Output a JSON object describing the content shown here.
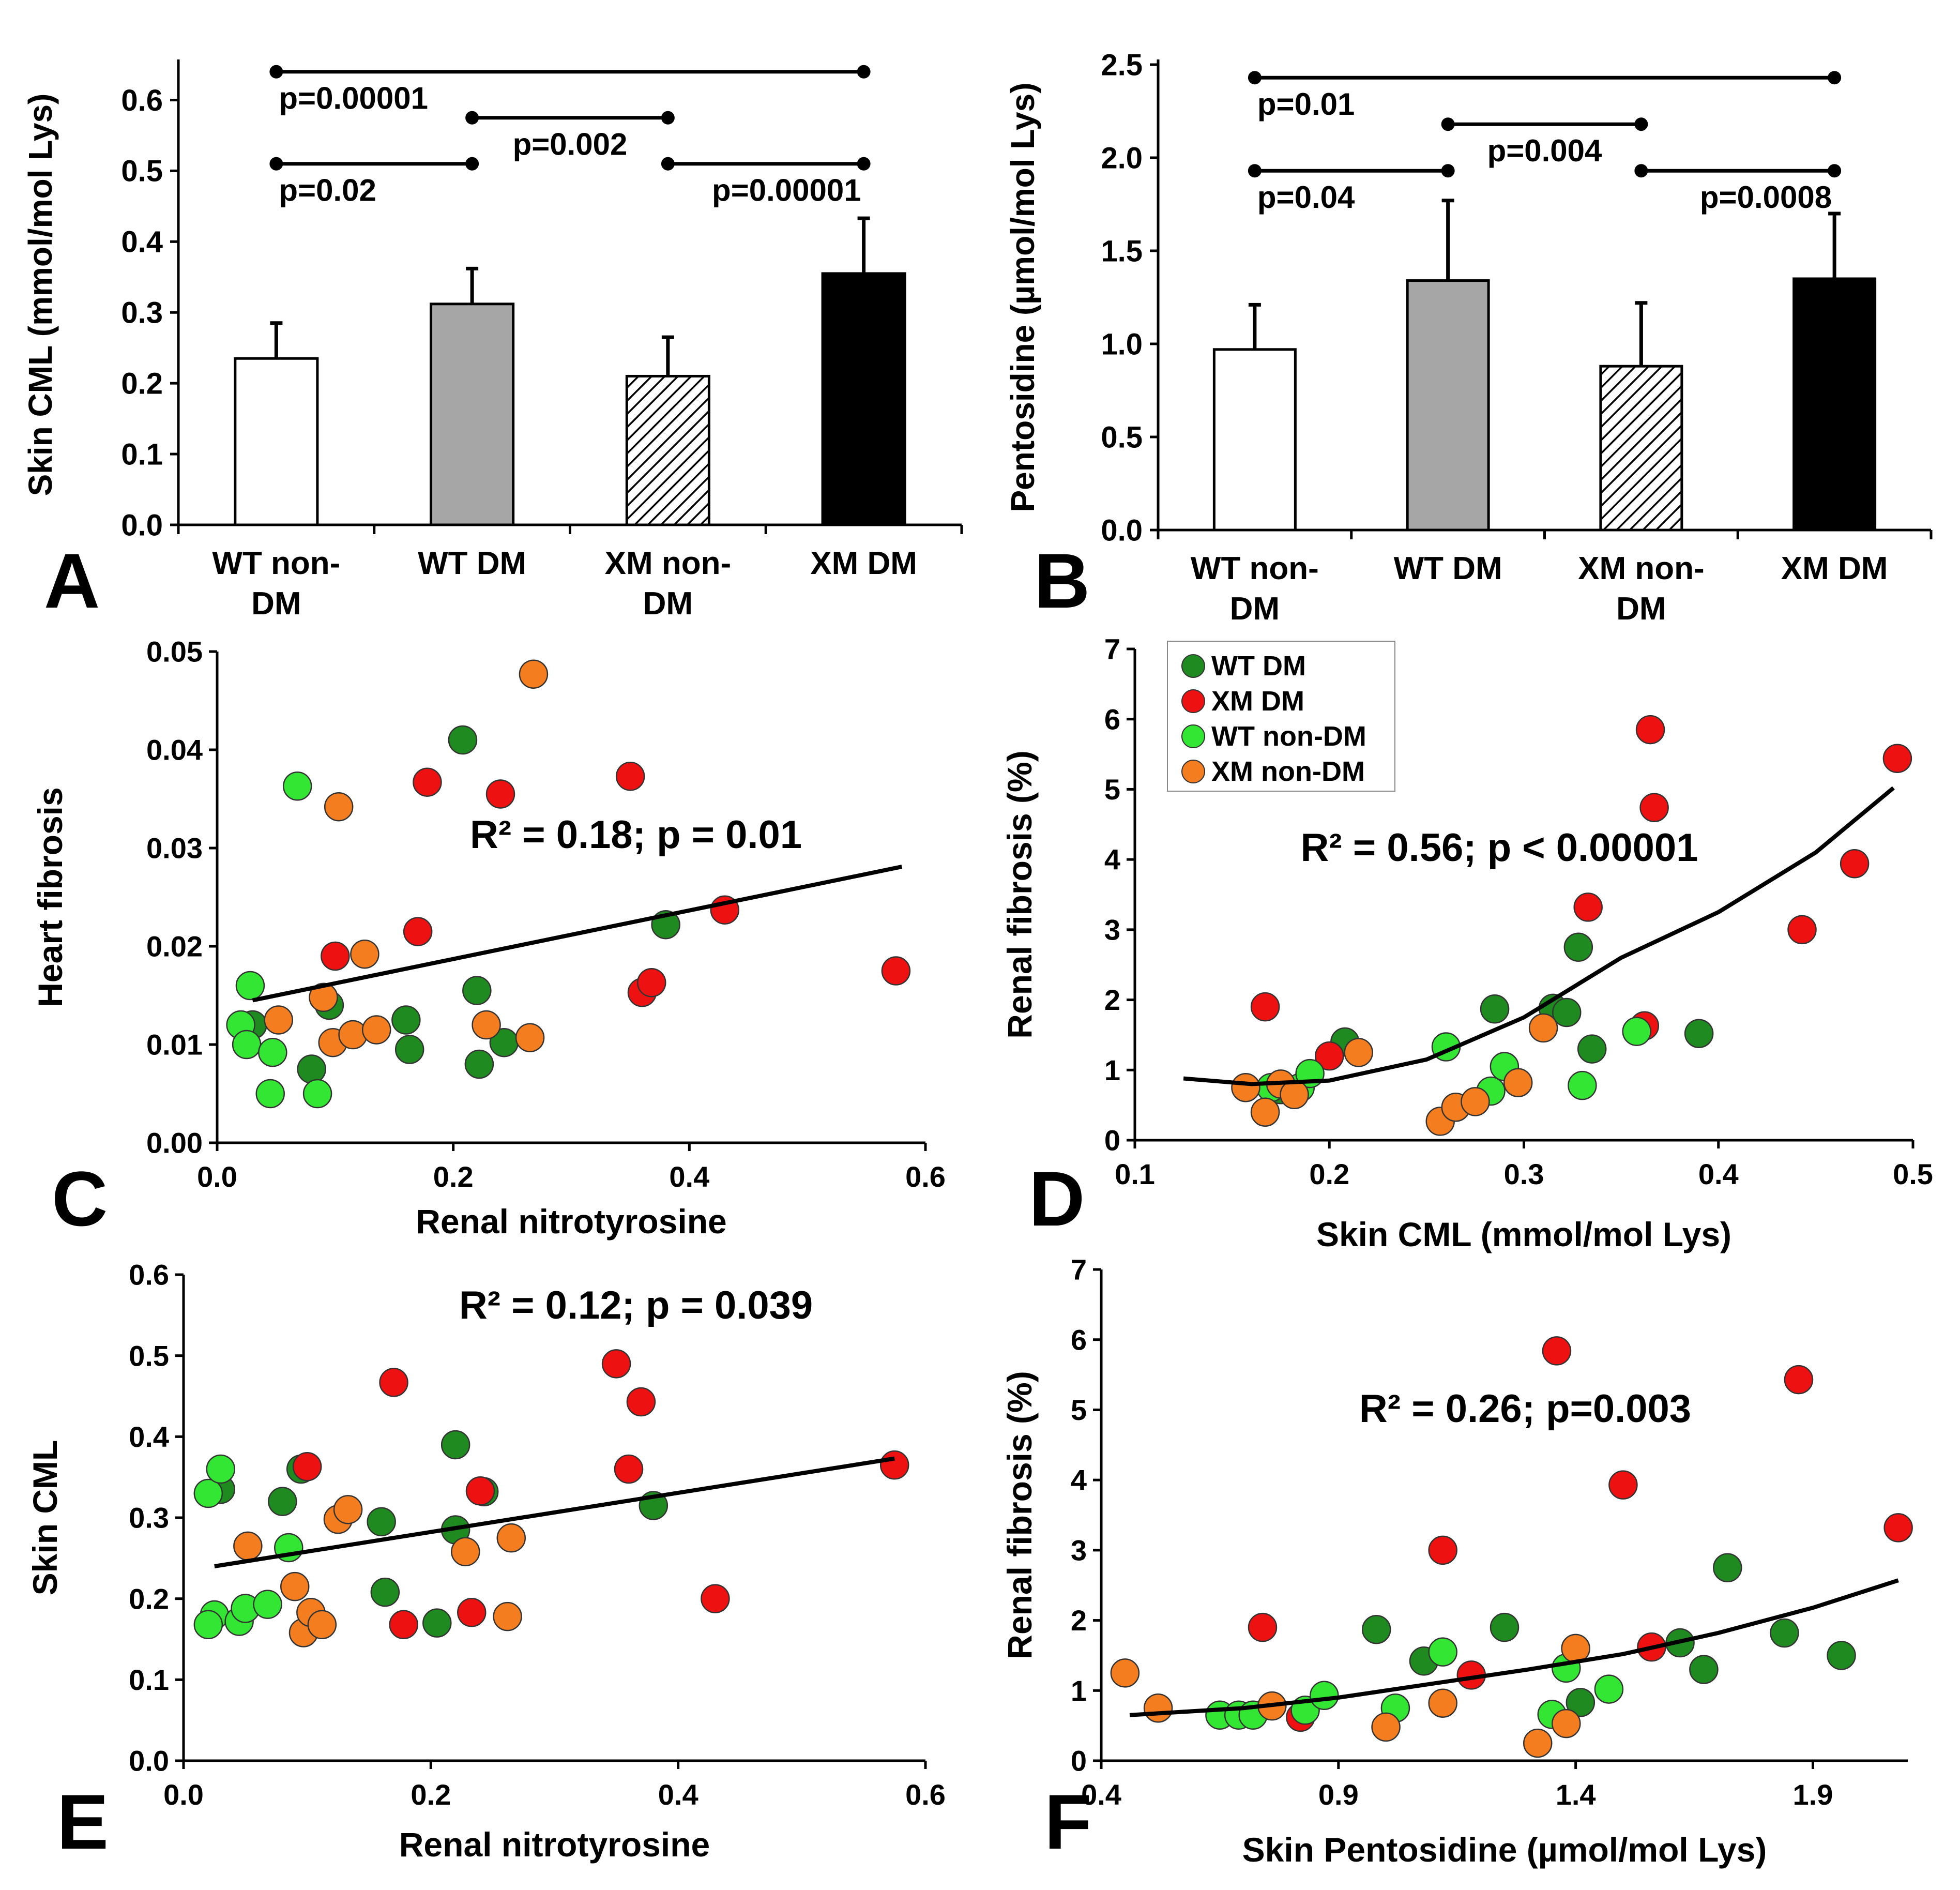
{
  "colors": {
    "wt_dm": "#1f8a1f",
    "xm_dm": "#ee1111",
    "wt_nondm": "#33e633",
    "xm_nondm": "#f47d20",
    "bar_wt_dm": "#a6a6a6",
    "bar_xm_dm": "#000000",
    "bar_white": "#ffffff"
  },
  "chart_data": [
    {
      "panel": "A",
      "type": "bar",
      "ylabel": "Skin CML (mmol/mol Lys)",
      "categories": [
        [
          "WT non-",
          "DM"
        ],
        [
          "WT DM"
        ],
        [
          "XM non-",
          "DM"
        ],
        [
          "XM DM"
        ]
      ],
      "values": [
        0.235,
        0.312,
        0.21,
        0.355
      ],
      "errors": [
        0.05,
        0.05,
        0.055,
        0.078
      ],
      "fills": [
        "white",
        "gray",
        "hatch",
        "black"
      ],
      "ylim": [
        0,
        0.65
      ],
      "yticks": [
        "0.0",
        "0.1",
        "0.2",
        "0.3",
        "0.4",
        "0.5",
        "0.6"
      ],
      "comparisons": [
        {
          "from": 0,
          "to": 3,
          "y": 0.64,
          "label": "p=0.00001",
          "label_pos": "below-left"
        },
        {
          "from": 1,
          "to": 2,
          "y": 0.575,
          "label": "p=0.002",
          "label_pos": "below-mid"
        },
        {
          "from": 0,
          "to": 1,
          "y": 0.51,
          "label": "p=0.02",
          "label_pos": "below-left"
        },
        {
          "from": 2,
          "to": 3,
          "y": 0.51,
          "label": "p=0.00001",
          "label_pos": "below-right"
        }
      ]
    },
    {
      "panel": "B",
      "type": "bar",
      "ylabel": "Pentosidine (µmol/mol Lys)",
      "categories": [
        [
          "WT non-",
          "DM"
        ],
        [
          "WT DM"
        ],
        [
          "XM non-",
          "DM"
        ],
        [
          "XM DM"
        ]
      ],
      "values": [
        0.97,
        1.34,
        0.88,
        1.35
      ],
      "errors": [
        0.24,
        0.43,
        0.34,
        0.35
      ],
      "fills": [
        "white",
        "gray",
        "hatch",
        "black"
      ],
      "ylim": [
        0,
        2.5
      ],
      "yticks": [
        "0.0",
        "0.5",
        "1.0",
        "1.5",
        "2.0",
        "2.5"
      ],
      "comparisons": [
        {
          "from": 0,
          "to": 3,
          "y": 2.43,
          "label": "p=0.01",
          "label_pos": "below-left"
        },
        {
          "from": 1,
          "to": 2,
          "y": 2.18,
          "label": "p=0.004",
          "label_pos": "below-mid"
        },
        {
          "from": 0,
          "to": 1,
          "y": 1.93,
          "label": "p=0.04",
          "label_pos": "below-left"
        },
        {
          "from": 2,
          "to": 3,
          "y": 1.93,
          "label": "p=0.0008",
          "label_pos": "below-right"
        }
      ]
    },
    {
      "panel": "C",
      "type": "scatter",
      "xlabel": "Renal nitrotyrosine",
      "ylabel": "Heart fibrosis",
      "xlim": [
        0,
        0.6
      ],
      "ylim": [
        0,
        0.05
      ],
      "xticks": [
        "0.0",
        "0.2",
        "0.4",
        "0.6"
      ],
      "yticks": [
        "0.00",
        "0.01",
        "0.02",
        "0.03",
        "0.04",
        "0.05"
      ],
      "annotation": {
        "text": "R² = 0.18; p = 0.01"
      },
      "fit": {
        "kind": "linear",
        "x0": 0.03,
        "x1": 0.58,
        "y0": 0.0145,
        "y1": 0.0281
      },
      "series": [
        {
          "name": "WT DM",
          "points": [
            [
              0.03,
              0.012
            ],
            [
              0.095,
              0.014
            ],
            [
              0.08,
              0.0075
            ],
            [
              0.16,
              0.0125
            ],
            [
              0.163,
              0.0095
            ],
            [
              0.208,
              0.041
            ],
            [
              0.22,
              0.0155
            ],
            [
              0.222,
              0.008
            ],
            [
              0.243,
              0.0102
            ],
            [
              0.38,
              0.0222
            ]
          ]
        },
        {
          "name": "XM DM",
          "points": [
            [
              0.1,
              0.019
            ],
            [
              0.17,
              0.0215
            ],
            [
              0.178,
              0.0367
            ],
            [
              0.24,
              0.0355
            ],
            [
              0.35,
              0.0373
            ],
            [
              0.36,
              0.0153
            ],
            [
              0.368,
              0.0163
            ],
            [
              0.43,
              0.0237
            ],
            [
              0.575,
              0.0175
            ]
          ]
        },
        {
          "name": "WT non-DM",
          "points": [
            [
              0.02,
              0.012
            ],
            [
              0.025,
              0.01
            ],
            [
              0.028,
              0.016
            ],
            [
              0.047,
              0.0092
            ],
            [
              0.045,
              0.005
            ],
            [
              0.068,
              0.0363
            ],
            [
              0.085,
              0.005
            ]
          ]
        },
        {
          "name": "XM non-DM",
          "points": [
            [
              0.052,
              0.0125
            ],
            [
              0.09,
              0.0148
            ],
            [
              0.098,
              0.0102
            ],
            [
              0.103,
              0.0342
            ],
            [
              0.115,
              0.011
            ],
            [
              0.125,
              0.0192
            ],
            [
              0.135,
              0.0115
            ],
            [
              0.228,
              0.012
            ],
            [
              0.265,
              0.0107
            ],
            [
              0.268,
              0.0477
            ]
          ]
        }
      ]
    },
    {
      "panel": "D",
      "type": "scatter",
      "xlabel": "Skin CML (mmol/mol Lys)",
      "ylabel": "Renal fibrosis (%)",
      "xlim": [
        0.1,
        0.5
      ],
      "ylim": [
        0,
        7
      ],
      "xticks": [
        "0.1",
        "0.2",
        "0.3",
        "0.4",
        "0.5"
      ],
      "yticks": [
        "0",
        "1",
        "2",
        "3",
        "4",
        "5",
        "6",
        "7"
      ],
      "annotation": {
        "text": "R² = 0.56; p < 0.00001"
      },
      "legend": {
        "position": "top-left",
        "entries": [
          "WT DM",
          "XM DM",
          "WT non-DM",
          "XM non-DM"
        ]
      },
      "fit": {
        "kind": "quadratic",
        "x0": 0.125,
        "x1": 0.49,
        "points": [
          [
            0.125,
            0.88
          ],
          [
            0.16,
            0.8
          ],
          [
            0.2,
            0.85
          ],
          [
            0.25,
            1.15
          ],
          [
            0.3,
            1.75
          ],
          [
            0.35,
            2.6
          ],
          [
            0.4,
            3.25
          ],
          [
            0.45,
            4.1
          ],
          [
            0.49,
            5.02
          ]
        ]
      },
      "series": [
        {
          "name": "WT DM",
          "points": [
            [
              0.175,
              0.72
            ],
            [
              0.208,
              1.4
            ],
            [
              0.285,
              1.87
            ],
            [
              0.315,
              1.88
            ],
            [
              0.322,
              1.82
            ],
            [
              0.328,
              2.75
            ],
            [
              0.335,
              1.3
            ],
            [
              0.39,
              1.52
            ]
          ]
        },
        {
          "name": "XM DM",
          "points": [
            [
              0.167,
              1.9
            ],
            [
              0.2,
              1.2
            ],
            [
              0.333,
              3.32
            ],
            [
              0.362,
              1.63
            ],
            [
              0.365,
              5.85
            ],
            [
              0.367,
              4.74
            ],
            [
              0.443,
              3.0
            ],
            [
              0.47,
              3.94
            ],
            [
              0.492,
              5.44
            ]
          ]
        },
        {
          "name": "WT non-DM",
          "points": [
            [
              0.17,
              0.75
            ],
            [
              0.185,
              0.75
            ],
            [
              0.19,
              0.95
            ],
            [
              0.26,
              1.33
            ],
            [
              0.283,
              0.7
            ],
            [
              0.29,
              1.05
            ],
            [
              0.33,
              0.78
            ],
            [
              0.358,
              1.55
            ]
          ]
        },
        {
          "name": "XM non-DM",
          "points": [
            [
              0.157,
              0.75
            ],
            [
              0.167,
              0.4
            ],
            [
              0.175,
              0.8
            ],
            [
              0.182,
              0.65
            ],
            [
              0.215,
              1.25
            ],
            [
              0.257,
              0.27
            ],
            [
              0.265,
              0.47
            ],
            [
              0.275,
              0.55
            ],
            [
              0.297,
              0.82
            ],
            [
              0.31,
              1.6
            ]
          ]
        }
      ]
    },
    {
      "panel": "E",
      "type": "scatter",
      "xlabel": "Renal nitrotyrosine",
      "ylabel": "Skin CML",
      "xlim": [
        0,
        0.6
      ],
      "ylim": [
        0,
        0.6
      ],
      "xticks": [
        "0.0",
        "0.2",
        "0.4",
        "0.6"
      ],
      "yticks": [
        "0.0",
        "0.1",
        "0.2",
        "0.3",
        "0.4",
        "0.5",
        "0.6"
      ],
      "annotation": {
        "text": "R² = 0.12; p = 0.039"
      },
      "fit": {
        "kind": "linear",
        "x0": 0.025,
        "x1": 0.575,
        "y0": 0.24,
        "y1": 0.373
      },
      "series": [
        {
          "name": "WT DM",
          "points": [
            [
              0.03,
              0.335
            ],
            [
              0.08,
              0.32
            ],
            [
              0.095,
              0.36
            ],
            [
              0.16,
              0.295
            ],
            [
              0.163,
              0.208
            ],
            [
              0.205,
              0.17
            ],
            [
              0.22,
              0.39
            ],
            [
              0.22,
              0.285
            ],
            [
              0.243,
              0.332
            ],
            [
              0.38,
              0.315
            ]
          ]
        },
        {
          "name": "XM DM",
          "points": [
            [
              0.1,
              0.363
            ],
            [
              0.17,
              0.467
            ],
            [
              0.178,
              0.168
            ],
            [
              0.233,
              0.183
            ],
            [
              0.24,
              0.333
            ],
            [
              0.35,
              0.49
            ],
            [
              0.36,
              0.36
            ],
            [
              0.37,
              0.443
            ],
            [
              0.43,
              0.2
            ],
            [
              0.575,
              0.365
            ]
          ]
        },
        {
          "name": "WT non-DM",
          "points": [
            [
              0.02,
              0.33
            ],
            [
              0.025,
              0.18
            ],
            [
              0.02,
              0.168
            ],
            [
              0.03,
              0.36
            ],
            [
              0.045,
              0.172
            ],
            [
              0.05,
              0.188
            ],
            [
              0.068,
              0.193
            ],
            [
              0.085,
              0.263
            ]
          ]
        },
        {
          "name": "XM non-DM",
          "points": [
            [
              0.052,
              0.265
            ],
            [
              0.09,
              0.215
            ],
            [
              0.097,
              0.158
            ],
            [
              0.103,
              0.183
            ],
            [
              0.112,
              0.168
            ],
            [
              0.125,
              0.298
            ],
            [
              0.133,
              0.31
            ],
            [
              0.228,
              0.258
            ],
            [
              0.262,
              0.178
            ],
            [
              0.265,
              0.275
            ]
          ]
        }
      ]
    },
    {
      "panel": "F",
      "type": "scatter",
      "xlabel": "Skin Pentosidine (µmol/mol Lys)",
      "ylabel": "Renal fibrosis (%)",
      "xlim": [
        0.4,
        2.1
      ],
      "ylim": [
        0,
        7
      ],
      "xticks": [
        "0.4",
        "0.9",
        "1.4",
        "1.9"
      ],
      "yticks": [
        "0",
        "1",
        "2",
        "3",
        "4",
        "5",
        "6",
        "7"
      ],
      "annotation": {
        "text": "R² = 0.26; p=0.003"
      },
      "fit": {
        "kind": "quadratic",
        "x0": 0.46,
        "x1": 2.08,
        "points": [
          [
            0.46,
            0.65
          ],
          [
            0.7,
            0.75
          ],
          [
            0.9,
            0.9
          ],
          [
            1.1,
            1.1
          ],
          [
            1.3,
            1.3
          ],
          [
            1.5,
            1.52
          ],
          [
            1.7,
            1.82
          ],
          [
            1.9,
            2.18
          ],
          [
            2.08,
            2.57
          ]
        ]
      },
      "series": [
        {
          "name": "WT DM",
          "points": [
            [
              0.98,
              1.87
            ],
            [
              1.08,
              1.42
            ],
            [
              1.25,
              1.9
            ],
            [
              1.41,
              0.83
            ],
            [
              1.62,
              1.68
            ],
            [
              1.67,
              1.3
            ],
            [
              1.72,
              2.75
            ],
            [
              1.84,
              1.82
            ],
            [
              1.96,
              1.5
            ]
          ]
        },
        {
          "name": "XM DM",
          "points": [
            [
              0.74,
              1.9
            ],
            [
              0.82,
              0.62
            ],
            [
              1.12,
              3.0
            ],
            [
              1.18,
              1.22
            ],
            [
              1.36,
              5.84
            ],
            [
              1.5,
              3.93
            ],
            [
              1.56,
              1.62
            ],
            [
              1.87,
              5.43
            ],
            [
              2.08,
              3.32
            ]
          ]
        },
        {
          "name": "WT non-DM",
          "points": [
            [
              0.65,
              0.65
            ],
            [
              0.69,
              0.65
            ],
            [
              0.72,
              0.65
            ],
            [
              0.83,
              0.72
            ],
            [
              0.87,
              0.93
            ],
            [
              1.02,
              0.75
            ],
            [
              1.12,
              1.55
            ],
            [
              1.35,
              0.66
            ],
            [
              1.38,
              1.32
            ],
            [
              1.47,
              1.02
            ]
          ]
        },
        {
          "name": "XM non-DM",
          "points": [
            [
              0.45,
              1.25
            ],
            [
              0.52,
              0.75
            ],
            [
              0.76,
              0.78
            ],
            [
              1.0,
              0.48
            ],
            [
              1.12,
              0.82
            ],
            [
              1.32,
              0.25
            ],
            [
              1.38,
              0.53
            ],
            [
              1.4,
              1.6
            ]
          ]
        }
      ]
    }
  ],
  "panel_letters": [
    "A",
    "B",
    "C",
    "D",
    "E",
    "F"
  ]
}
